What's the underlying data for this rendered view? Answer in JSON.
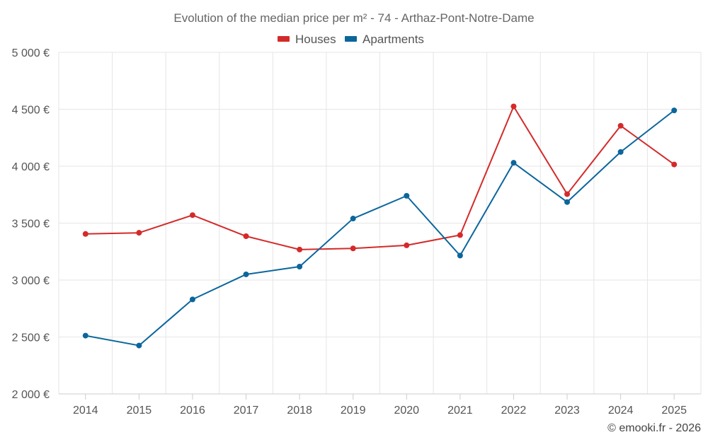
{
  "chart_data": {
    "type": "line",
    "title": "Evolution of the median price per m² - 74 - Arthaz-Pont-Notre-Dame",
    "xlabel": "",
    "ylabel": "",
    "categories": [
      "2014",
      "2015",
      "2016",
      "2017",
      "2018",
      "2019",
      "2020",
      "2021",
      "2022",
      "2023",
      "2024",
      "2025"
    ],
    "ylim": [
      2000,
      5000
    ],
    "yticks": [
      2000,
      2500,
      3000,
      3500,
      4000,
      4500,
      5000
    ],
    "ytick_labels": [
      "2 000 €",
      "2 500 €",
      "3 000 €",
      "3 500 €",
      "4 000 €",
      "4 500 €",
      "5 000 €"
    ],
    "grid": true,
    "legend_position": "top-center",
    "series": [
      {
        "name": "Houses",
        "color": "#d42a2a",
        "values": [
          3405,
          3415,
          3570,
          3385,
          3268,
          3278,
          3305,
          3395,
          4525,
          3755,
          4355,
          4015
        ]
      },
      {
        "name": "Apartments",
        "color": "#0b669c",
        "values": [
          2512,
          2425,
          2830,
          3050,
          3118,
          3540,
          3740,
          3215,
          4030,
          3685,
          4125,
          4490
        ]
      }
    ],
    "credit": "© emooki.fr - 2026"
  }
}
